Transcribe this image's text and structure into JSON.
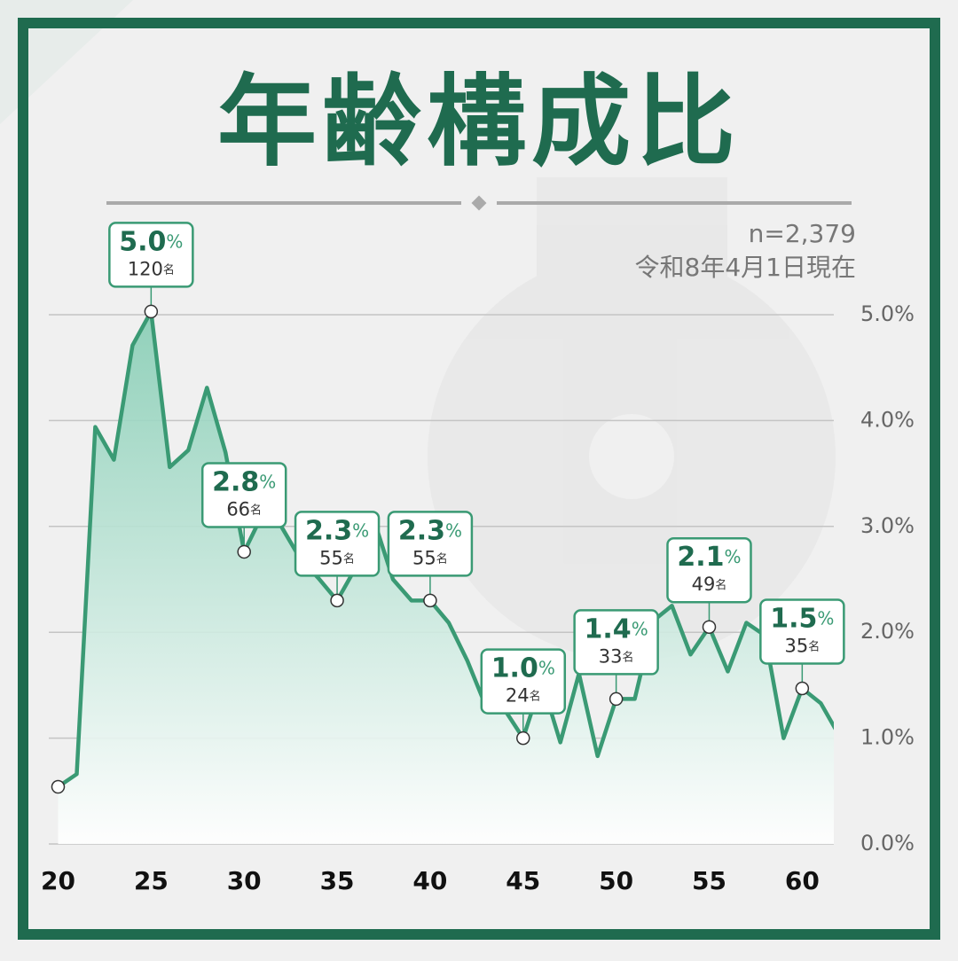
{
  "chart_data": {
    "type": "area",
    "title": "年齢構成比",
    "subtitle": "n=2,379",
    "note": "令和8年4月1日現在",
    "x": [
      20,
      21,
      22,
      23,
      24,
      25,
      26,
      27,
      28,
      29,
      30,
      31,
      32,
      33,
      34,
      35,
      36,
      37,
      38,
      39,
      40,
      41,
      42,
      43,
      44,
      45,
      46,
      47,
      48,
      49,
      50,
      51,
      52,
      53,
      54,
      55,
      56,
      57,
      58,
      59,
      60,
      61,
      62
    ],
    "values": [
      0.54,
      0.66,
      3.94,
      3.63,
      4.71,
      5.03,
      3.56,
      3.72,
      4.31,
      3.7,
      2.76,
      3.12,
      3.0,
      2.7,
      2.51,
      2.3,
      2.61,
      3.05,
      2.5,
      2.3,
      2.3,
      2.09,
      1.73,
      1.3,
      1.27,
      1.0,
      1.54,
      0.96,
      1.61,
      0.83,
      1.37,
      1.37,
      2.11,
      2.25,
      1.79,
      2.05,
      1.63,
      2.09,
      1.97,
      1.0,
      1.47,
      1.33,
      1.02
    ],
    "color": "#3a9a74",
    "xlim": [
      19.5,
      61.7
    ],
    "xticks": [
      20,
      25,
      30,
      35,
      40,
      45,
      50,
      55,
      60
    ],
    "ylim": [
      0,
      5
    ],
    "yticks": [
      {
        "value": 0,
        "label": "0.0%"
      },
      {
        "value": 1,
        "label": "1.0%"
      },
      {
        "value": 2,
        "label": "2.0%"
      },
      {
        "value": 3,
        "label": "3.0%"
      },
      {
        "value": 4,
        "label": "4.0%"
      },
      {
        "value": 5,
        "label": "5.0%"
      }
    ],
    "grid": true,
    "value_unit": "%",
    "count_unit": "名",
    "annotations": [
      {
        "x": 25,
        "label": "5.0",
        "count": 120
      },
      {
        "x": 30,
        "label": "2.8",
        "count": 66
      },
      {
        "x": 35,
        "label": "2.3",
        "count": 55
      },
      {
        "x": 40,
        "label": "2.3",
        "count": 55
      },
      {
        "x": 45,
        "label": "1.0",
        "count": 24
      },
      {
        "x": 50,
        "label": "1.4",
        "count": 33
      },
      {
        "x": 55,
        "label": "2.1",
        "count": 49
      },
      {
        "x": 60,
        "label": "1.5",
        "count": 35
      }
    ],
    "marked_points": [
      20,
      25,
      30,
      35,
      40,
      45,
      50,
      55,
      60
    ]
  }
}
